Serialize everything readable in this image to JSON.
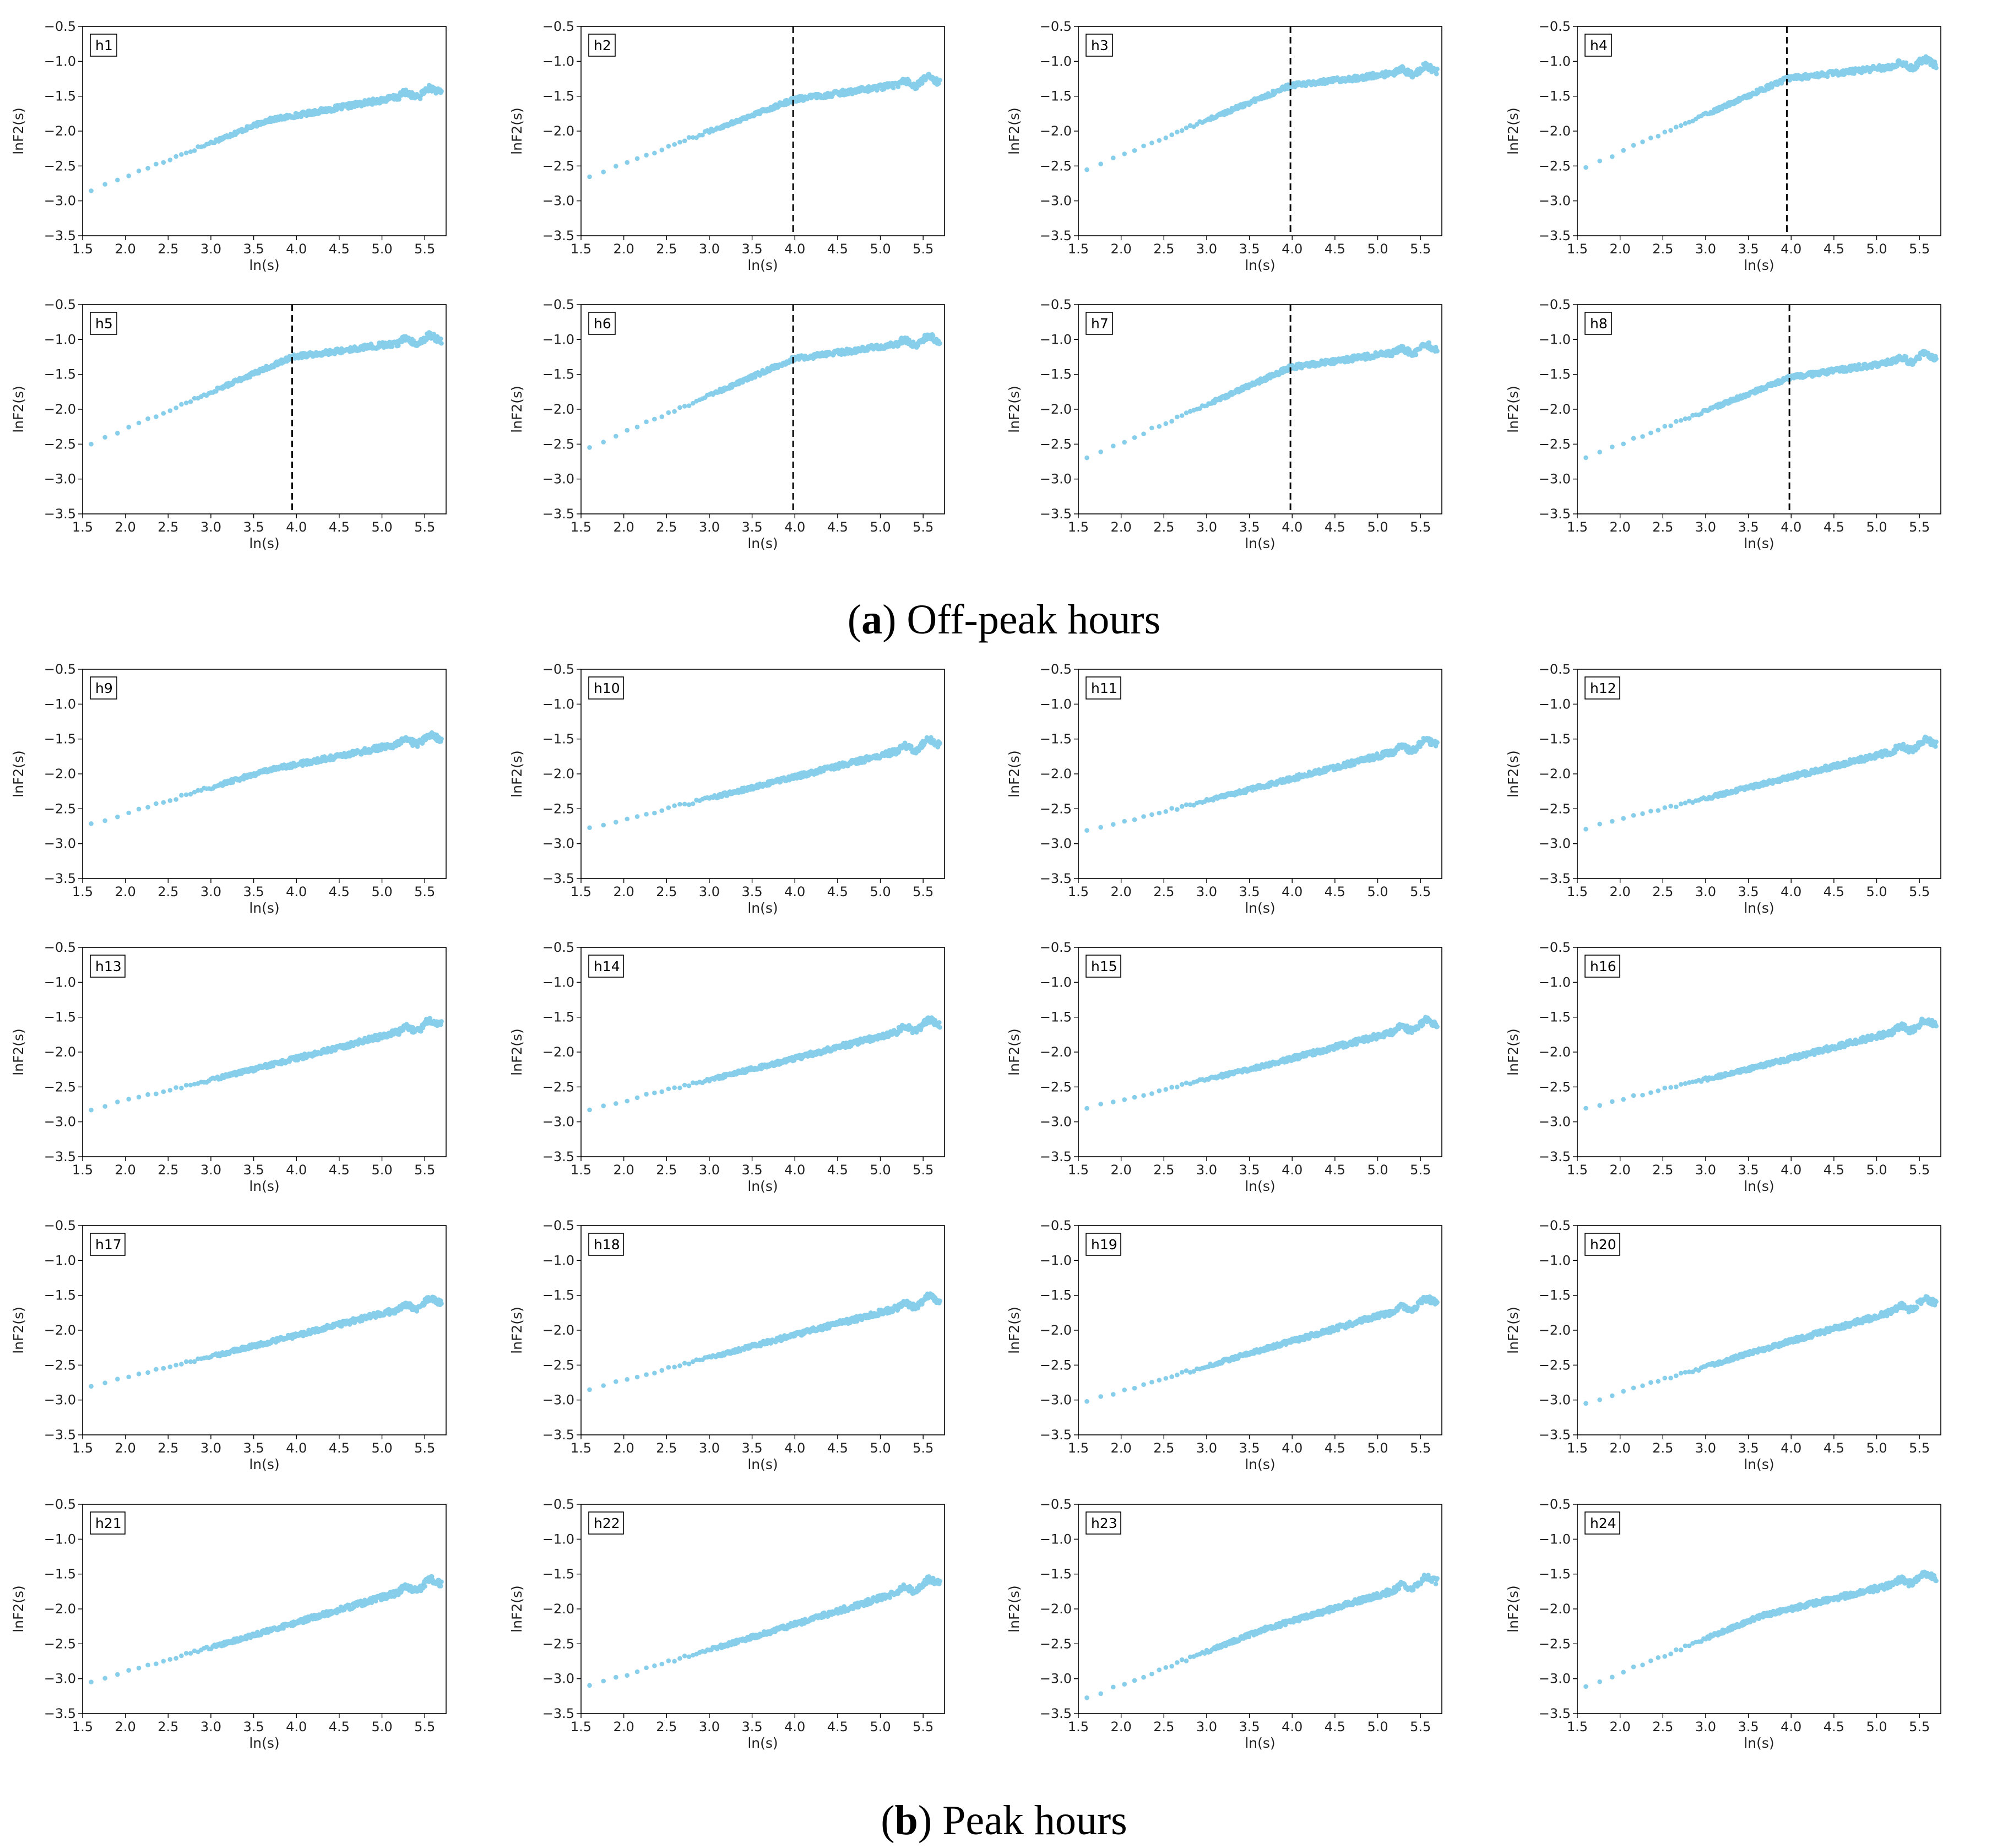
{
  "figure": {
    "caption_a_letter": "a",
    "caption_a_text": "Off-peak hours",
    "caption_b_letter": "b",
    "caption_b_text": "Peak hours"
  },
  "chart_data": {
    "type": "scatter",
    "xlabel": "ln(s)",
    "ylabel": "lnF2(s)",
    "xlim": [
      1.5,
      5.75
    ],
    "ylim": [
      -3.5,
      -0.5
    ],
    "x_ticks": [
      1.5,
      2.0,
      2.5,
      3.0,
      3.5,
      4.0,
      4.5,
      5.0,
      5.5
    ],
    "x_tick_labels": [
      "1.5",
      "2.0",
      "2.5",
      "3.0",
      "3.5",
      "4.0",
      "4.5",
      "5.0",
      "5.5"
    ],
    "y_ticks": [
      -0.5,
      -1.0,
      -1.5,
      -2.0,
      -2.5,
      -3.0,
      -3.5
    ],
    "y_tick_labels": [
      "−0.5",
      "−1.0",
      "−1.5",
      "−2.0",
      "−2.5",
      "−3.0",
      "−3.5"
    ],
    "marker_color": "#87ceeb",
    "breakpoint_line_color": "#000000",
    "x_start": 1.6,
    "x_end": 5.7,
    "panels": [
      {
        "label": "h1",
        "group": "a",
        "y_start": -2.85,
        "y_mid": -1.85,
        "y_end": -1.4,
        "breakpoint": null
      },
      {
        "label": "h2",
        "group": "a",
        "y_start": -2.65,
        "y_mid": -1.55,
        "y_end": -1.25,
        "breakpoint": 3.98
      },
      {
        "label": "h3",
        "group": "a",
        "y_start": -2.55,
        "y_mid": -1.35,
        "y_end": -1.1,
        "breakpoint": 3.98
      },
      {
        "label": "h4",
        "group": "a",
        "y_start": -2.52,
        "y_mid": -1.25,
        "y_end": -1.0,
        "breakpoint": 3.95
      },
      {
        "label": "h5",
        "group": "a",
        "y_start": -2.5,
        "y_mid": -1.25,
        "y_end": -0.97,
        "breakpoint": 3.95
      },
      {
        "label": "h6",
        "group": "a",
        "y_start": -2.55,
        "y_mid": -1.28,
        "y_end": -0.98,
        "breakpoint": 3.98
      },
      {
        "label": "h7",
        "group": "a",
        "y_start": -2.7,
        "y_mid": -1.4,
        "y_end": -1.1,
        "breakpoint": 3.98
      },
      {
        "label": "h8",
        "group": "a",
        "y_start": -2.7,
        "y_mid": -1.55,
        "y_end": -1.22,
        "breakpoint": 3.98
      },
      {
        "label": "h9",
        "group": "b",
        "y_start": -2.72,
        "y_mid": -1.95,
        "y_end": -1.45,
        "breakpoint": null
      },
      {
        "label": "h10",
        "group": "b",
        "y_start": -2.78,
        "y_mid": -2.15,
        "y_end": -1.52,
        "breakpoint": null
      },
      {
        "label": "h11",
        "group": "b",
        "y_start": -2.82,
        "y_mid": -2.18,
        "y_end": -1.52,
        "breakpoint": null
      },
      {
        "label": "h12",
        "group": "b",
        "y_start": -2.78,
        "y_mid": -2.15,
        "y_end": -1.52,
        "breakpoint": null
      },
      {
        "label": "h13",
        "group": "b",
        "y_start": -2.82,
        "y_mid": -2.2,
        "y_end": -1.55,
        "breakpoint": null
      },
      {
        "label": "h14",
        "group": "b",
        "y_start": -2.82,
        "y_mid": -2.2,
        "y_end": -1.55,
        "breakpoint": null
      },
      {
        "label": "h15",
        "group": "b",
        "y_start": -2.8,
        "y_mid": -2.2,
        "y_end": -1.55,
        "breakpoint": null
      },
      {
        "label": "h16",
        "group": "b",
        "y_start": -2.8,
        "y_mid": -2.2,
        "y_end": -1.55,
        "breakpoint": null
      },
      {
        "label": "h17",
        "group": "b",
        "y_start": -2.8,
        "y_mid": -2.18,
        "y_end": -1.55,
        "breakpoint": null
      },
      {
        "label": "h18",
        "group": "b",
        "y_start": -2.85,
        "y_mid": -2.18,
        "y_end": -1.52,
        "breakpoint": null
      },
      {
        "label": "h19",
        "group": "b",
        "y_start": -3.02,
        "y_mid": -2.28,
        "y_end": -1.55,
        "breakpoint": null
      },
      {
        "label": "h20",
        "group": "b",
        "y_start": -3.05,
        "y_mid": -2.28,
        "y_end": -1.55,
        "breakpoint": null
      },
      {
        "label": "h21",
        "group": "b",
        "y_start": -3.05,
        "y_mid": -2.32,
        "y_end": -1.58,
        "breakpoint": null
      },
      {
        "label": "h22",
        "group": "b",
        "y_start": -3.1,
        "y_mid": -2.35,
        "y_end": -1.58,
        "breakpoint": null
      },
      {
        "label": "h23",
        "group": "b",
        "y_start": -3.28,
        "y_mid": -2.3,
        "y_end": -1.55,
        "breakpoint": null
      },
      {
        "label": "h24",
        "group": "b",
        "y_start": -3.12,
        "y_mid": -2.1,
        "y_end": -1.5,
        "breakpoint": null
      }
    ]
  }
}
